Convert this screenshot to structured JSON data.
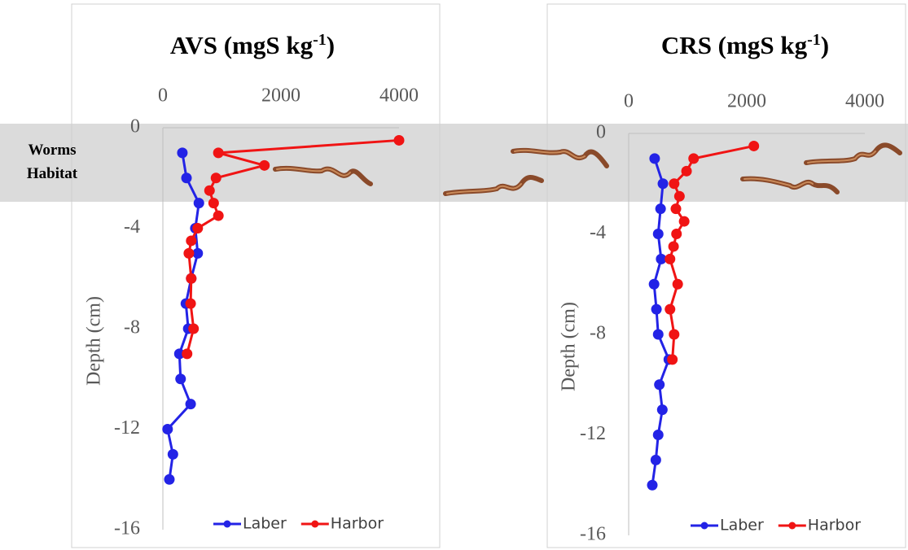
{
  "annotation": {
    "lines": [
      "Worms",
      "Habitat"
    ]
  },
  "chart_data": [
    {
      "type": "line",
      "title": {
        "text": "AVS (mgS kg",
        "superscript": "-1",
        "end": ")"
      },
      "y_label": "Depth (cm)",
      "xlim": [
        0,
        4000
      ],
      "xticks": [
        0,
        2000,
        4000
      ],
      "ylim": [
        -16,
        0
      ],
      "yticks": [
        0,
        -4,
        -8,
        -12,
        -16
      ],
      "legend": "bottom",
      "series": [
        {
          "name": "Laber",
          "color": "#2323e6",
          "x": [
            330,
            400,
            610,
            550,
            590,
            480,
            390,
            430,
            280,
            300,
            470,
            80,
            170,
            110
          ],
          "y": [
            -1,
            -2,
            -3,
            -4,
            -5,
            -6,
            -7,
            -8,
            -9,
            -10,
            -11,
            -12,
            -13,
            -14
          ]
        },
        {
          "name": "Harbor",
          "color": "#f01414",
          "x": [
            4000,
            940,
            1720,
            900,
            790,
            860,
            940,
            590,
            480,
            440,
            480,
            470,
            520,
            410
          ],
          "y": [
            -0.5,
            -1,
            -1.5,
            -2,
            -2.5,
            -3,
            -3.5,
            -4,
            -4.5,
            -5,
            -6,
            -7,
            -8,
            -9
          ]
        }
      ]
    },
    {
      "type": "line",
      "title": {
        "text": "CRS (mgS kg",
        "superscript": "-1",
        "end": ")"
      },
      "y_label": "Depth (cm)",
      "xlim": [
        0,
        4000
      ],
      "xticks": [
        0,
        2000,
        4000
      ],
      "ylim": [
        -16,
        0
      ],
      "yticks": [
        0,
        -4,
        -8,
        -12,
        -16
      ],
      "legend": "bottom",
      "series": [
        {
          "name": "Laber",
          "color": "#2323e6",
          "x": [
            440,
            580,
            540,
            500,
            550,
            430,
            470,
            500,
            680,
            520,
            570,
            500,
            460,
            400
          ],
          "y": [
            -1,
            -2,
            -3,
            -4,
            -5,
            -6,
            -7,
            -8,
            -9,
            -10,
            -11,
            -12,
            -13,
            -14
          ]
        },
        {
          "name": "Harbor",
          "color": "#f01414",
          "x": [
            2120,
            1100,
            980,
            770,
            860,
            800,
            940,
            810,
            760,
            700,
            830,
            700,
            770,
            740
          ],
          "y": [
            -0.5,
            -1,
            -1.5,
            -2,
            -2.5,
            -3,
            -3.5,
            -4,
            -4.5,
            -5,
            -6,
            -7,
            -8,
            -9
          ]
        }
      ]
    }
  ]
}
